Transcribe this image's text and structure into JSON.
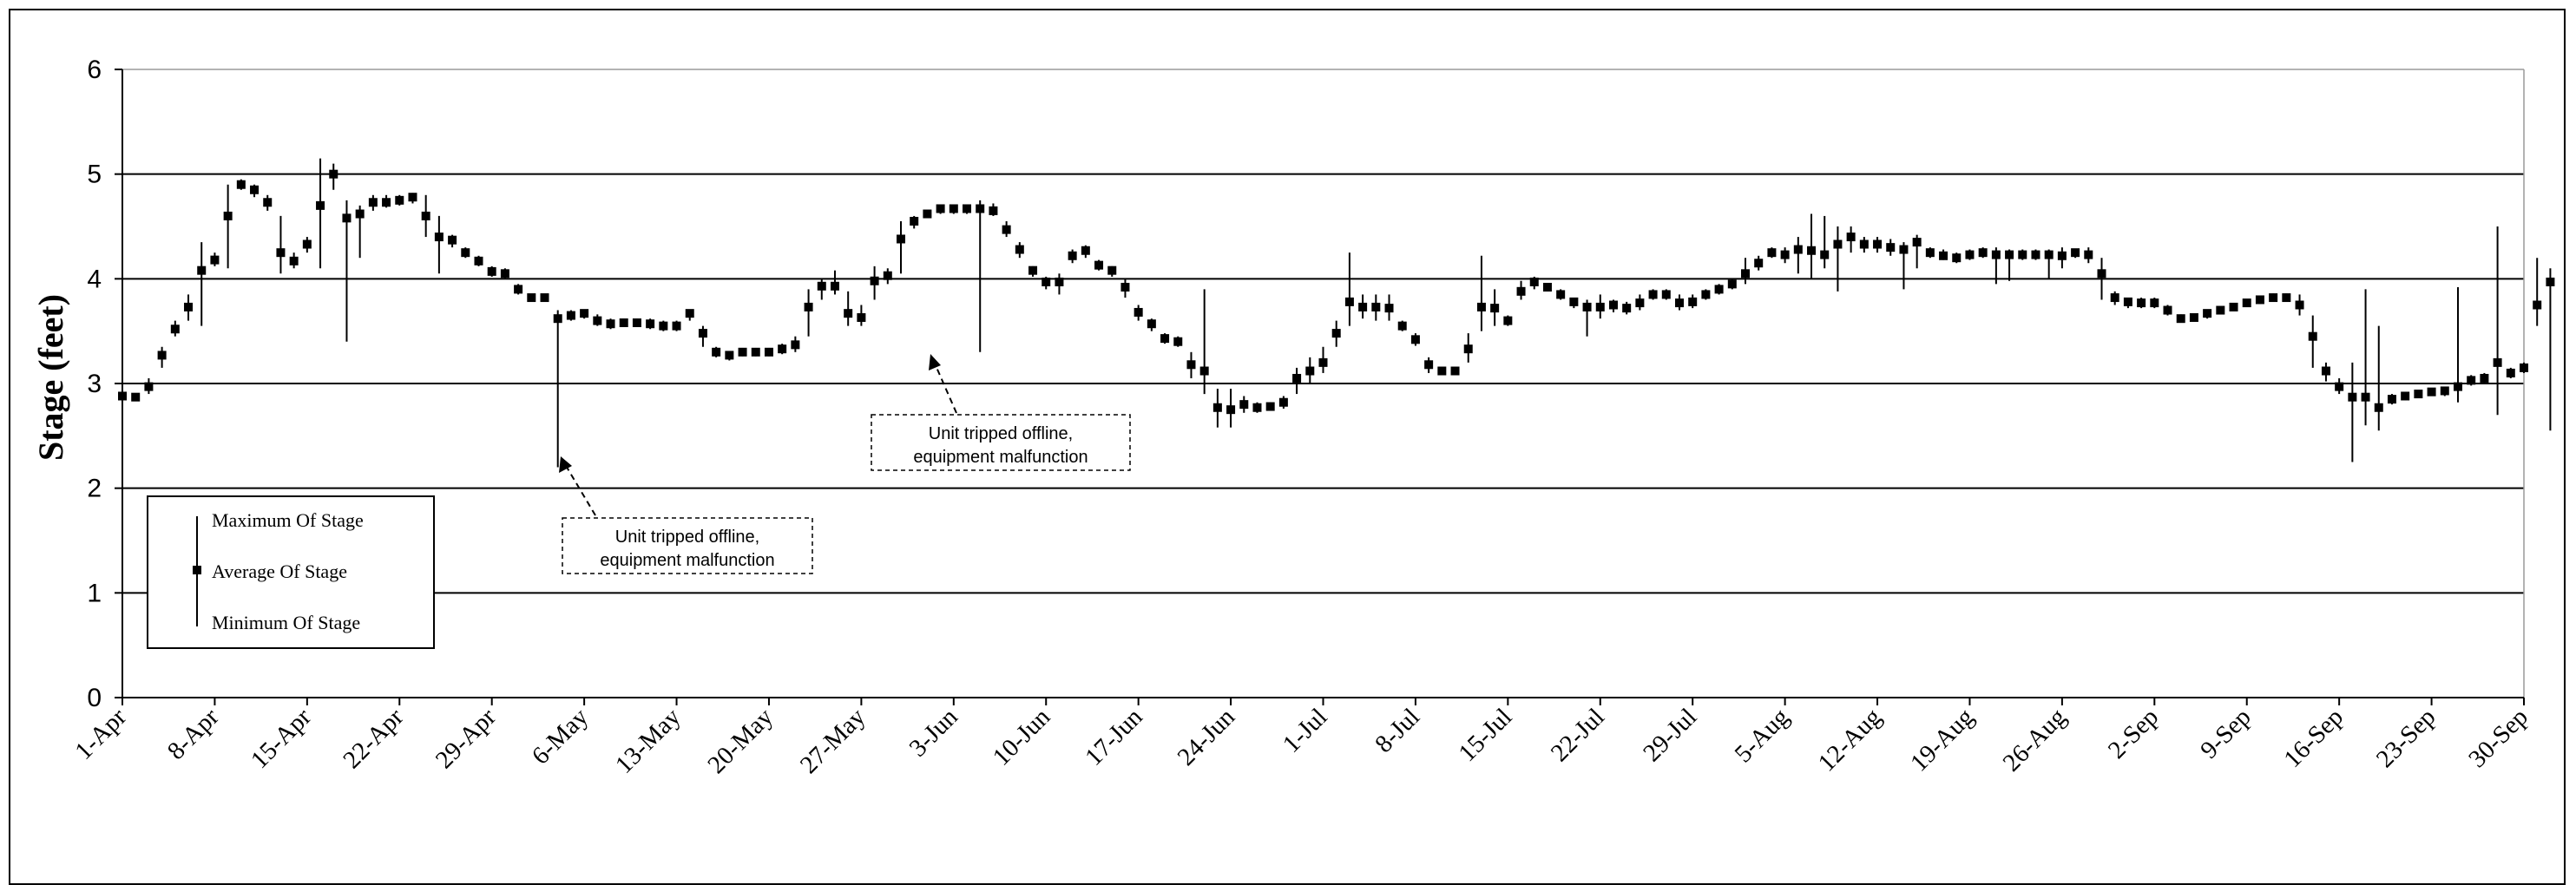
{
  "chart_data": {
    "type": "scatter",
    "title": "",
    "xlabel": "",
    "ylabel": "Stage (feet)",
    "ylim": [
      0,
      6
    ],
    "yticks": [
      "0",
      "1",
      "2",
      "3",
      "4",
      "5",
      "6"
    ],
    "xlim": [
      "2000-04-01",
      "2000-09-30"
    ],
    "xticks": [
      {
        "date": "2000-04-01",
        "label": "1-Apr"
      },
      {
        "date": "2000-04-08",
        "label": "8-Apr"
      },
      {
        "date": "2000-04-15",
        "label": "15-Apr"
      },
      {
        "date": "2000-04-22",
        "label": "22-Apr"
      },
      {
        "date": "2000-04-29",
        "label": "29-Apr"
      },
      {
        "date": "2000-05-06",
        "label": "6-May"
      },
      {
        "date": "2000-05-13",
        "label": "13-May"
      },
      {
        "date": "2000-05-20",
        "label": "20-May"
      },
      {
        "date": "2000-05-27",
        "label": "27-May"
      },
      {
        "date": "2000-06-03",
        "label": "3-Jun"
      },
      {
        "date": "2000-06-10",
        "label": "10-Jun"
      },
      {
        "date": "2000-06-17",
        "label": "17-Jun"
      },
      {
        "date": "2000-06-24",
        "label": "24-Jun"
      },
      {
        "date": "2000-07-01",
        "label": "1-Jul"
      },
      {
        "date": "2000-07-08",
        "label": "8-Jul"
      },
      {
        "date": "2000-07-15",
        "label": "15-Jul"
      },
      {
        "date": "2000-07-22",
        "label": "22-Jul"
      },
      {
        "date": "2000-07-29",
        "label": "29-Jul"
      },
      {
        "date": "2000-08-05",
        "label": "5-Aug"
      },
      {
        "date": "2000-08-12",
        "label": "12-Aug"
      },
      {
        "date": "2000-08-19",
        "label": "19-Aug"
      },
      {
        "date": "2000-08-26",
        "label": "26-Aug"
      },
      {
        "date": "2000-09-02",
        "label": "2-Sep"
      },
      {
        "date": "2000-09-09",
        "label": "9-Sep"
      },
      {
        "date": "2000-09-16",
        "label": "16-Sep"
      },
      {
        "date": "2000-09-23",
        "label": "23-Sep"
      },
      {
        "date": "2000-09-30",
        "label": "30-Sep"
      }
    ],
    "grid": {
      "horizontal": true,
      "vertical": false
    },
    "legend": {
      "position": "bottom-left",
      "entries": [
        "Maximum Of Stage",
        "Average Of Stage",
        "Minimum Of Stage"
      ]
    },
    "annotations": [
      {
        "text": [
          "Unit tripped offline,",
          "equipment malfunction"
        ],
        "date": "2000-05-04",
        "value": 2.2
      },
      {
        "text": [
          "Unit tripped offline,",
          "equipment malfunction"
        ],
        "date": "2000-06-01",
        "value": 3.3
      }
    ],
    "start_date": "2000-04-01",
    "series": [
      {
        "name": "Average Of Stage",
        "values": [
          2.88,
          2.87,
          2.97,
          3.27,
          3.52,
          3.73,
          4.08,
          4.18,
          4.6,
          4.9,
          4.85,
          4.73,
          4.25,
          4.17,
          4.33,
          4.7,
          5.0,
          4.58,
          4.62,
          4.73,
          4.73,
          4.75,
          4.78,
          4.6,
          4.4,
          4.37,
          4.25,
          4.17,
          4.07,
          4.05,
          3.9,
          3.82,
          3.82,
          3.62,
          3.65,
          3.67,
          3.6,
          3.57,
          3.58,
          3.58,
          3.57,
          3.55,
          3.55,
          3.67,
          3.48,
          3.3,
          3.27,
          3.3,
          3.3,
          3.3,
          3.33,
          3.37,
          3.73,
          3.93,
          3.93,
          3.67,
          3.63,
          3.98,
          4.03,
          4.38,
          4.55,
          4.62,
          4.67,
          4.67,
          4.67,
          4.67,
          4.65,
          4.47,
          4.28,
          4.08,
          3.97,
          3.97,
          4.22,
          4.27,
          4.13,
          4.08,
          3.92,
          3.68,
          3.57,
          3.43,
          3.4,
          3.18,
          3.12,
          2.77,
          2.75,
          2.8,
          2.77,
          2.78,
          2.82,
          3.05,
          3.12,
          3.2,
          3.48,
          3.78,
          3.73,
          3.73,
          3.72,
          3.55,
          3.42,
          3.18,
          3.12,
          3.12,
          3.33,
          3.73,
          3.72,
          3.6,
          3.88,
          3.97,
          3.92,
          3.85,
          3.78,
          3.73,
          3.73,
          3.75,
          3.72,
          3.77,
          3.85,
          3.85,
          3.77,
          3.78,
          3.85,
          3.9,
          3.95,
          4.05,
          4.15,
          4.25,
          4.23,
          4.28,
          4.27,
          4.23,
          4.33,
          4.4,
          4.33,
          4.33,
          4.3,
          4.28,
          4.35,
          4.25,
          4.22,
          4.2,
          4.23,
          4.25,
          4.23,
          4.23,
          4.23,
          4.23,
          4.23,
          4.22,
          4.25,
          4.23,
          4.05,
          3.82,
          3.78,
          3.77,
          3.77,
          3.7,
          3.62,
          3.63,
          3.67,
          3.7,
          3.73,
          3.77,
          3.8,
          3.82,
          3.82,
          3.75,
          3.45,
          3.12,
          2.97,
          2.87,
          2.87,
          2.77,
          2.85,
          2.88,
          2.9,
          2.92,
          2.93,
          2.97,
          3.03,
          3.05,
          3.2,
          3.1,
          3.15,
          3.75,
          3.97
        ]
      },
      {
        "name": "Maximum Of Stage",
        "values": [
          2.9,
          2.9,
          3.05,
          3.35,
          3.6,
          3.85,
          4.35,
          4.25,
          4.9,
          4.95,
          4.9,
          4.8,
          4.6,
          4.25,
          4.4,
          5.15,
          5.1,
          4.75,
          4.7,
          4.8,
          4.8,
          4.8,
          4.82,
          4.8,
          4.6,
          4.42,
          4.3,
          4.22,
          4.12,
          4.1,
          3.95,
          3.85,
          3.85,
          3.7,
          3.7,
          3.7,
          3.66,
          3.62,
          3.62,
          3.62,
          3.62,
          3.6,
          3.6,
          3.7,
          3.55,
          3.35,
          3.3,
          3.34,
          3.34,
          3.34,
          3.38,
          3.45,
          3.9,
          4.0,
          4.08,
          3.88,
          3.75,
          4.12,
          4.1,
          4.55,
          4.6,
          4.65,
          4.7,
          4.7,
          4.7,
          4.75,
          4.72,
          4.55,
          4.35,
          4.12,
          4.02,
          4.05,
          4.28,
          4.32,
          4.18,
          4.12,
          4.0,
          3.75,
          3.62,
          3.48,
          3.45,
          3.3,
          3.9,
          2.95,
          2.95,
          2.88,
          2.82,
          2.82,
          2.88,
          3.15,
          3.25,
          3.35,
          3.6,
          4.25,
          3.85,
          3.85,
          3.85,
          3.6,
          3.48,
          3.25,
          3.15,
          3.15,
          3.48,
          4.22,
          3.9,
          3.65,
          3.98,
          4.02,
          3.95,
          3.9,
          3.82,
          3.8,
          3.85,
          3.8,
          3.78,
          3.85,
          3.9,
          3.9,
          3.85,
          3.85,
          3.9,
          3.95,
          4.0,
          4.2,
          4.22,
          4.3,
          4.3,
          4.4,
          4.62,
          4.6,
          4.5,
          4.5,
          4.4,
          4.4,
          4.38,
          4.35,
          4.42,
          4.3,
          4.28,
          4.25,
          4.28,
          4.3,
          4.3,
          4.28,
          4.28,
          4.28,
          4.28,
          4.3,
          4.28,
          4.3,
          4.2,
          3.88,
          3.82,
          3.82,
          3.82,
          3.75,
          3.66,
          3.66,
          3.7,
          3.73,
          3.76,
          3.8,
          3.84,
          3.86,
          3.86,
          3.85,
          3.65,
          3.2,
          3.05,
          3.2,
          3.9,
          3.55,
          2.9,
          2.92,
          2.93,
          2.95,
          2.97,
          3.92,
          3.08,
          3.1,
          4.5,
          3.15,
          3.2,
          4.2,
          4.1
        ]
      },
      {
        "name": "Minimum Of Stage",
        "values": [
          2.85,
          2.85,
          2.9,
          3.15,
          3.45,
          3.6,
          3.55,
          4.12,
          4.1,
          4.85,
          4.78,
          4.65,
          4.05,
          4.1,
          4.25,
          4.1,
          4.85,
          3.4,
          4.2,
          4.65,
          4.68,
          4.7,
          4.72,
          4.4,
          4.05,
          4.3,
          4.2,
          4.12,
          4.02,
          4.0,
          3.85,
          3.78,
          3.78,
          2.2,
          3.6,
          3.62,
          3.55,
          3.52,
          3.54,
          3.54,
          3.52,
          3.5,
          3.5,
          3.6,
          3.35,
          3.25,
          3.22,
          3.26,
          3.26,
          3.26,
          3.28,
          3.3,
          3.45,
          3.8,
          3.85,
          3.55,
          3.55,
          3.8,
          3.95,
          4.05,
          4.48,
          4.58,
          4.62,
          4.62,
          4.62,
          3.3,
          4.6,
          4.4,
          4.2,
          4.02,
          3.9,
          3.85,
          4.15,
          4.2,
          4.08,
          4.02,
          3.82,
          3.6,
          3.5,
          3.38,
          3.35,
          3.05,
          2.9,
          2.58,
          2.58,
          2.72,
          2.72,
          2.74,
          2.76,
          2.9,
          3.0,
          3.1,
          3.35,
          3.55,
          3.62,
          3.6,
          3.6,
          3.5,
          3.36,
          3.1,
          3.08,
          3.08,
          3.2,
          3.5,
          3.55,
          3.55,
          3.8,
          3.9,
          3.88,
          3.8,
          3.72,
          3.45,
          3.62,
          3.68,
          3.66,
          3.7,
          3.8,
          3.8,
          3.7,
          3.72,
          3.8,
          3.85,
          3.9,
          3.95,
          4.08,
          4.2,
          4.15,
          4.05,
          4.0,
          4.1,
          3.88,
          4.25,
          4.25,
          4.25,
          4.22,
          3.9,
          4.1,
          4.2,
          4.18,
          4.15,
          4.18,
          4.2,
          3.95,
          3.98,
          4.18,
          4.18,
          4.0,
          4.1,
          4.2,
          4.15,
          3.8,
          3.75,
          3.72,
          3.72,
          3.72,
          3.65,
          3.58,
          3.6,
          3.62,
          3.66,
          3.7,
          3.74,
          3.76,
          3.78,
          3.78,
          3.65,
          3.15,
          3.02,
          2.9,
          2.25,
          2.6,
          2.55,
          2.8,
          2.84,
          2.86,
          2.88,
          2.88,
          2.82,
          2.98,
          3.0,
          2.7,
          3.05,
          3.1,
          3.55,
          2.55
        ]
      }
    ]
  }
}
